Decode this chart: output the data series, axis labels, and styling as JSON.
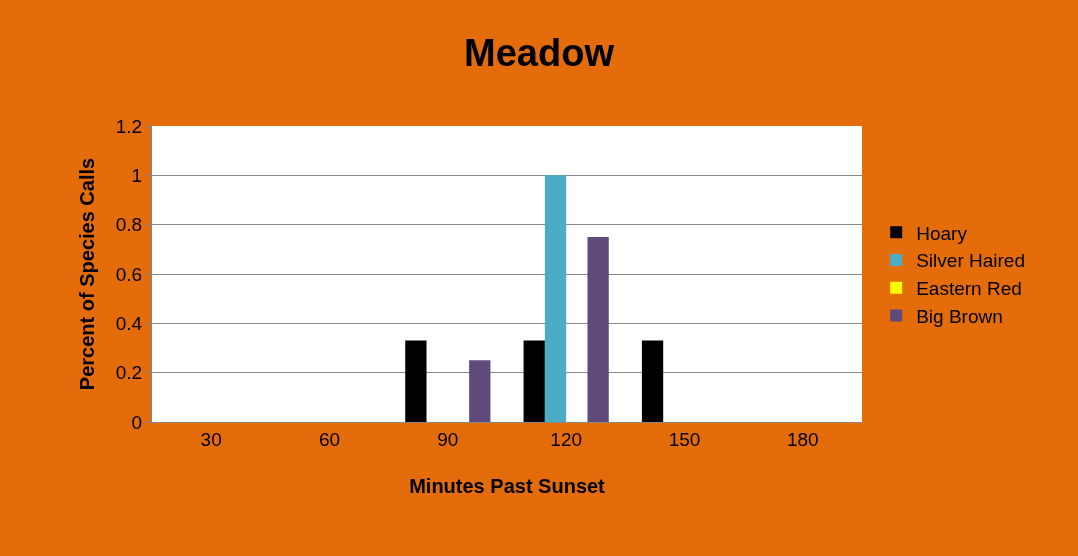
{
  "chart_data": {
    "type": "bar",
    "title": "Meadow",
    "xlabel": "Minutes Past Sunset",
    "ylabel": "Percent of Species Calls",
    "categories": [
      "30",
      "60",
      "90",
      "120",
      "150",
      "180"
    ],
    "series": [
      {
        "name": "Hoary",
        "color": "#000000",
        "values": [
          0,
          0,
          0.33,
          0.33,
          0.33,
          0
        ]
      },
      {
        "name": "Silver Haired",
        "color": "#4bacc6",
        "values": [
          0,
          0,
          0,
          1,
          0,
          0
        ]
      },
      {
        "name": "Eastern Red",
        "color": "#ffff00",
        "values": [
          0,
          0,
          0,
          0,
          0,
          0
        ]
      },
      {
        "name": "Big Brown",
        "color": "#604a7b",
        "values": [
          0,
          0,
          0.25,
          0.75,
          0,
          0
        ]
      }
    ],
    "ylim": [
      0,
      1.2
    ],
    "yticks": [
      0,
      0.2,
      0.4,
      0.6,
      0.8,
      1,
      1.2
    ],
    "grid": "y",
    "legend": "right"
  }
}
